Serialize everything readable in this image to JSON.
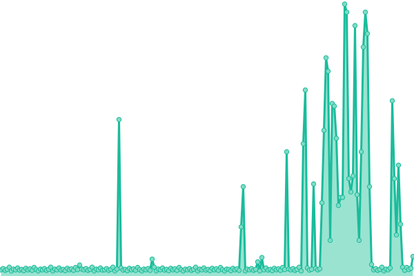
{
  "chart_data": {
    "type": "line",
    "title": "",
    "xlabel": "",
    "ylabel": "",
    "ylim": [
      0,
      100
    ],
    "grid": false,
    "axes_visible": false,
    "markers": true,
    "area_fill": true,
    "colors": {
      "line": "#1abc9c",
      "marker_fill": "#7fdcc4",
      "area": "#8fe0cc"
    },
    "values": [
      1,
      1.5,
      0.8,
      1.2,
      2,
      0.6,
      1.3,
      1,
      1.7,
      0.9,
      1.2,
      0.7,
      1.6,
      1,
      1.4,
      0.8,
      1.9,
      1.1,
      0.6,
      1.3,
      1,
      1.5,
      0.8,
      1.2,
      2,
      0.6,
      1.3,
      1,
      1.7,
      0.9,
      1.2,
      0.7,
      1.6,
      1,
      1.4,
      0.8,
      1.9,
      1.1,
      2.8,
      1.3,
      1,
      1.5,
      0.8,
      1.2,
      2,
      0.6,
      1.3,
      1,
      1.7,
      0.9,
      1,
      1.5,
      0.8,
      1.2,
      2,
      0.6,
      1.3,
      57,
      1.7,
      0.9,
      1.2,
      0.7,
      1.6,
      1,
      1.4,
      0.8,
      1.9,
      1.1,
      0.6,
      1.3,
      1,
      1.5,
      0.8,
      5,
      2,
      0.6,
      1.3,
      1,
      1.7,
      0.9,
      1.2,
      0.7,
      1.6,
      1,
      1.4,
      0.8,
      1.9,
      1.1,
      0.6,
      1.3,
      1,
      1.5,
      0.8,
      1.2,
      2,
      0.6,
      1.3,
      1,
      1.7,
      0.9,
      1.2,
      0.7,
      1.6,
      1,
      1.4,
      0.8,
      1.9,
      1.1,
      0.6,
      1.3,
      1.2,
      0.7,
      1.6,
      1,
      1.4,
      0.8,
      17,
      32,
      0.6,
      1.3,
      1,
      1.5,
      0.8,
      1.2,
      4,
      0.6,
      5.6,
      1,
      1.7,
      0.9,
      1.2,
      0.7,
      1.6,
      1,
      1.4,
      0.8,
      1.9,
      1.1,
      45,
      1.3,
      1,
      1.5,
      0.8,
      1.2,
      2,
      0.6,
      48,
      68,
      1.7,
      0.9,
      1.2,
      33,
      1.6,
      1,
      1.4,
      26,
      53,
      80,
      75,
      12,
      63,
      62,
      50,
      25,
      28,
      28,
      100,
      97,
      35,
      30,
      36,
      92,
      29,
      12,
      45,
      84,
      97,
      89,
      32,
      3,
      1,
      1.5,
      0.8,
      1.2,
      2,
      0.6,
      1.3,
      1,
      1.7,
      64,
      35,
      14,
      40,
      18,
      2,
      0.8,
      1.9,
      1.1,
      1.6,
      6
    ]
  }
}
